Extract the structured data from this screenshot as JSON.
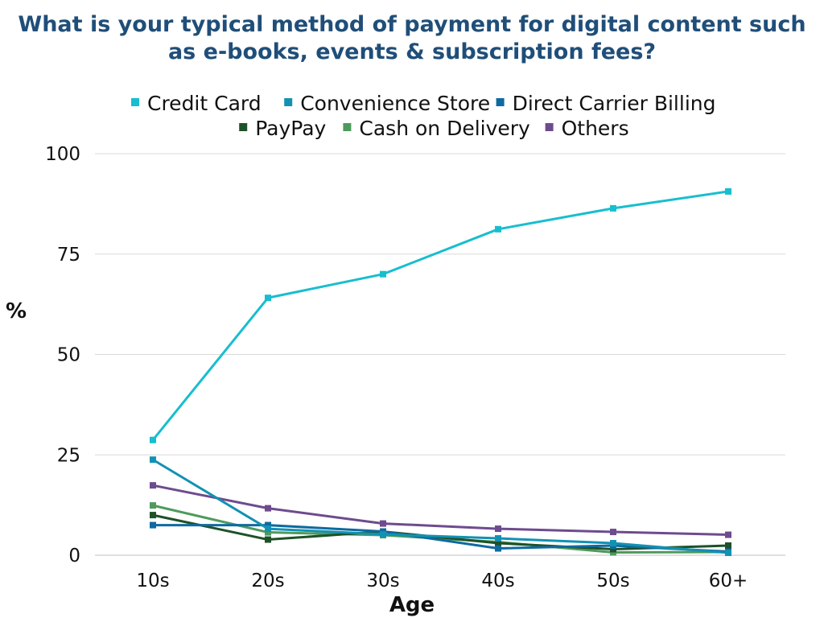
{
  "chart_data": {
    "type": "line",
    "title_line1": "What is your typical method of payment for digital content such",
    "title_line2": "as e-books, events & subscription fees?",
    "xlabel": "Age",
    "ylabel": "%",
    "categories": [
      "10s",
      "20s",
      "30s",
      "40s",
      "50s",
      "60+"
    ],
    "ylim": [
      0,
      100
    ],
    "yticks": [
      0,
      25,
      50,
      75,
      100
    ],
    "grid": true,
    "legend_position": "top",
    "series": [
      {
        "name": "Credit Card",
        "color": "#17becf",
        "values": [
          28.7,
          64.1,
          70.0,
          81.2,
          86.4,
          90.6
        ]
      },
      {
        "name": "Convenience Store",
        "color": "#1391b3",
        "values": [
          23.8,
          6.6,
          5.2,
          4.2,
          3.0,
          0.6
        ]
      },
      {
        "name": "Direct Carrier Billing",
        "color": "#0e6aa0",
        "values": [
          7.5,
          7.5,
          5.9,
          1.7,
          2.4,
          0.9
        ]
      },
      {
        "name": "PayPay",
        "color": "#1e5128",
        "values": [
          10.0,
          3.9,
          5.9,
          3.0,
          1.5,
          2.4
        ]
      },
      {
        "name": "Cash on Delivery",
        "color": "#4e9a5c",
        "values": [
          12.4,
          5.7,
          5.0,
          3.3,
          0.7,
          0.8
        ]
      },
      {
        "name": "Others",
        "color": "#6e4b8e",
        "values": [
          17.4,
          11.7,
          7.9,
          6.6,
          5.8,
          5.1
        ]
      }
    ]
  }
}
